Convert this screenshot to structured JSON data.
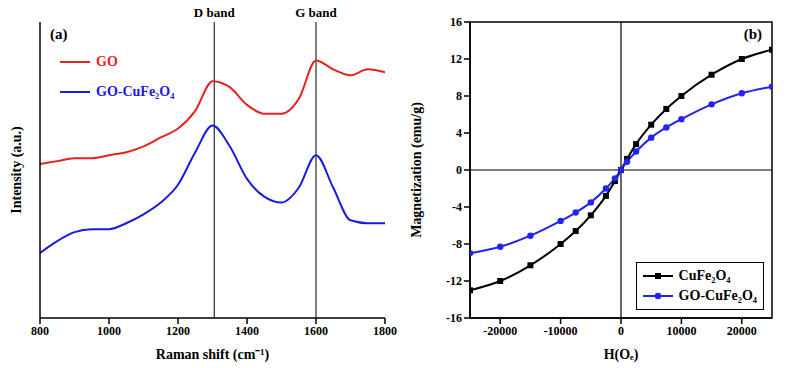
{
  "chart_data": [
    {
      "type": "line",
      "title": "(a)",
      "x_label": "Raman shift (cm⁻¹)",
      "y_label": "Intensity (a.u.)",
      "x": [
        800,
        850,
        900,
        950,
        1000,
        1050,
        1100,
        1150,
        1200,
        1250,
        1300,
        1350,
        1400,
        1450,
        1500,
        1550,
        1600,
        1650,
        1700,
        1750,
        1800
      ],
      "xlim": [
        800,
        1800
      ],
      "xticks": [
        800,
        1000,
        1200,
        1400,
        1600,
        1800
      ],
      "ylim": [
        0,
        100
      ],
      "tick_labels": "x",
      "grid": false,
      "legend": "upper left",
      "annotations": [
        {
          "text": "D band",
          "x": 1305
        },
        {
          "text": "G band",
          "x": 1600
        }
      ],
      "series": [
        {
          "name": "GO",
          "color": "#e3231c",
          "values": [
            52,
            53,
            54,
            54,
            55,
            56,
            58,
            61,
            64,
            70,
            80,
            78,
            72,
            69,
            69,
            74,
            87,
            84,
            82,
            84,
            83
          ]
        },
        {
          "name": "GO-CuFe₂O₄",
          "color": "#1a1ae0",
          "values": [
            22,
            26,
            29,
            30,
            30,
            32,
            35,
            39,
            45,
            56,
            65,
            58,
            47,
            41,
            39,
            44,
            55,
            44,
            33,
            32,
            32
          ]
        }
      ]
    },
    {
      "type": "line",
      "title": "(b)",
      "x_label": "H(Oₑ)",
      "y_label": "Magnetization (emu/g)",
      "x": [
        -25000,
        -20000,
        -15000,
        -10000,
        -7500,
        -5000,
        -2500,
        -1000,
        0,
        1000,
        2500,
        5000,
        7500,
        10000,
        15000,
        20000,
        25000
      ],
      "xlim": [
        -25000,
        25000
      ],
      "xticks": [
        -20000,
        -10000,
        0,
        10000,
        20000
      ],
      "ylim": [
        -16,
        16
      ],
      "yticks": [
        -16,
        -12,
        -8,
        -4,
        0,
        4,
        8,
        12,
        16
      ],
      "grid": false,
      "legend": "lower right",
      "series": [
        {
          "name": "CuFe₂O₄",
          "color": "#000000",
          "marker": "square",
          "values": [
            -13,
            -12,
            -10.3,
            -8,
            -6.6,
            -4.9,
            -2.8,
            -1.2,
            0,
            1.2,
            2.8,
            4.9,
            6.6,
            8,
            10.3,
            12,
            13
          ]
        },
        {
          "name": "GO-CuFe₂O₄",
          "color": "#2323f0",
          "marker": "circle",
          "values": [
            -9,
            -8.3,
            -7.1,
            -5.5,
            -4.6,
            -3.5,
            -2,
            -0.9,
            0,
            0.9,
            2,
            3.5,
            4.6,
            5.5,
            7.1,
            8.3,
            9
          ]
        }
      ]
    }
  ]
}
